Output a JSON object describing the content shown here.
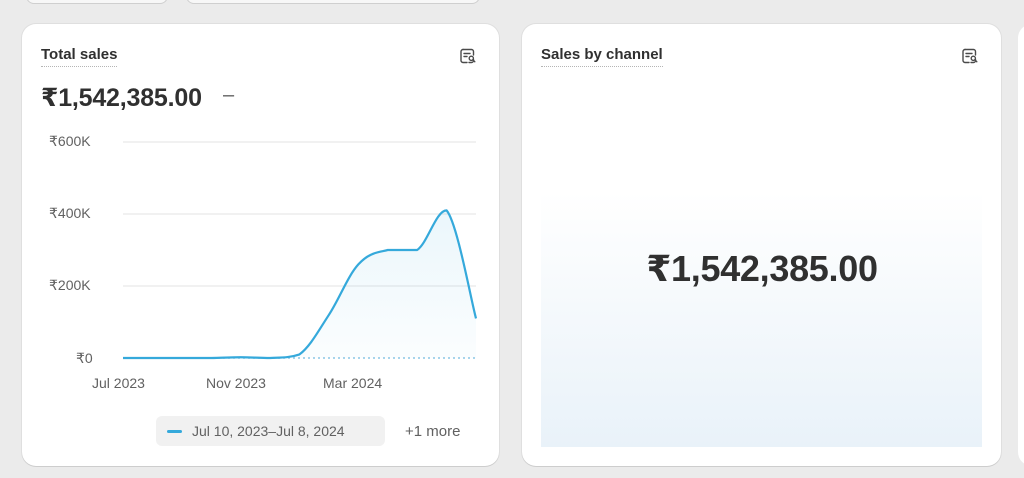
{
  "cards": {
    "total_sales": {
      "title": "Total sales",
      "value": "₹1,542,385.00",
      "comparison": "–",
      "legend": {
        "label": "Jul 10, 2023–Jul 8, 2024",
        "more": "+1 more"
      }
    },
    "sales_by_channel": {
      "title": "Sales by channel",
      "value": "₹1,542,385.00"
    }
  },
  "icons": {
    "card_action": "explore-report-icon"
  },
  "colors": {
    "series": "#35a9db",
    "background": "#ebebeb",
    "card": "#ffffff"
  },
  "chart_data": {
    "type": "line",
    "y_ticks": [
      "₹600K",
      "₹400K",
      "₹200K",
      "₹0"
    ],
    "x_ticks": [
      "Jul 2023",
      "Nov 2023",
      "Mar 2024"
    ],
    "ylim": [
      0,
      600000
    ],
    "grid": true,
    "legend_position": "bottom",
    "series": [
      {
        "name": "Jul 10, 2023–Jul 8, 2024",
        "x": [
          "2023-07",
          "2023-08",
          "2023-09",
          "2023-10",
          "2023-11",
          "2023-12",
          "2024-01",
          "2024-02",
          "2024-03",
          "2024-04",
          "2024-05",
          "2024-06",
          "2024-07"
        ],
        "values": [
          0,
          0,
          0,
          0,
          2000,
          0,
          10000,
          120000,
          260000,
          300000,
          300000,
          410000,
          110000
        ]
      }
    ],
    "comparison_series": {
      "values": [
        0,
        0,
        0,
        0,
        0,
        0,
        0,
        0,
        0,
        0,
        0,
        0,
        0
      ]
    }
  }
}
